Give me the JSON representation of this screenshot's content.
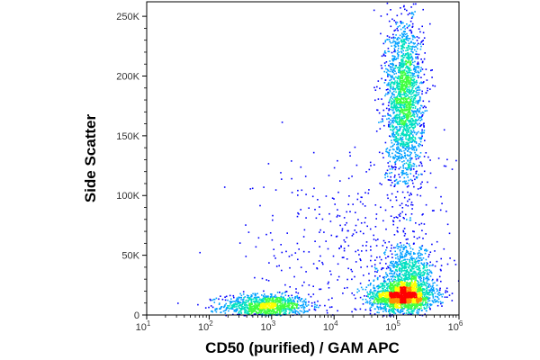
{
  "chart_data": {
    "type": "scatter",
    "subtype": "flow-cytometry-density-dot-plot",
    "title": "",
    "xlabel": "CD50 (purified) / GAM APC",
    "ylabel": "Side Scatter",
    "x_scale": "log",
    "xlim": [
      10,
      1000000
    ],
    "ylim": [
      0,
      262144
    ],
    "x_ticks": [
      {
        "value": 10,
        "base": "10",
        "exp": "1"
      },
      {
        "value": 100,
        "base": "10",
        "exp": "2"
      },
      {
        "value": 1000,
        "base": "10",
        "exp": "3"
      },
      {
        "value": 10000,
        "base": "10",
        "exp": "4"
      },
      {
        "value": 100000,
        "base": "10",
        "exp": "5"
      },
      {
        "value": 1000000,
        "base": "10",
        "exp": "6"
      }
    ],
    "y_ticks": [
      {
        "value": 0,
        "label": "0"
      },
      {
        "value": 50000,
        "label": "50K"
      },
      {
        "value": 100000,
        "label": "100K"
      },
      {
        "value": 150000,
        "label": "150K"
      },
      {
        "value": 200000,
        "label": "200K"
      },
      {
        "value": 250000,
        "label": "250K"
      }
    ],
    "grid": false,
    "legend": "none",
    "colormap": [
      "#0000ff",
      "#00a0ff",
      "#00e0c0",
      "#40ff40",
      "#ffff00",
      "#ff9000",
      "#ff0000"
    ],
    "populations": [
      {
        "x_center": 800,
        "y_center": 8000,
        "x_spread_decades": 0.35,
        "y_spread": 5000,
        "relative_count": 0.18
      },
      {
        "x_center": 120000,
        "y_center": 16000,
        "x_spread_decades": 0.25,
        "y_spread": 6000,
        "relative_count": 0.3
      },
      {
        "x_center": 150000,
        "y_center": 35000,
        "x_spread_decades": 0.2,
        "y_spread": 12000,
        "relative_count": 0.12
      },
      {
        "x_center": 130000,
        "y_center": 180000,
        "x_spread_decades": 0.15,
        "y_spread": 35000,
        "relative_count": 0.33
      },
      {
        "x_center": 30000,
        "y_center": 60000,
        "x_spread_decades": 0.9,
        "y_spread": 40000,
        "relative_count": 0.07
      }
    ]
  }
}
